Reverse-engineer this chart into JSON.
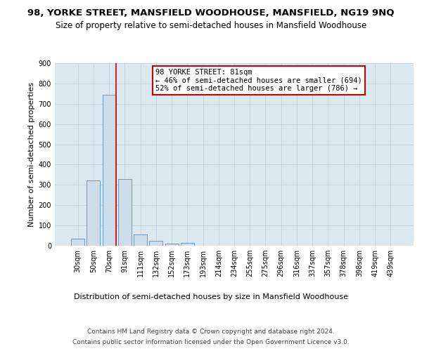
{
  "title": "98, YORKE STREET, MANSFIELD WOODHOUSE, MANSFIELD, NG19 9NQ",
  "subtitle": "Size of property relative to semi-detached houses in Mansfield Woodhouse",
  "xlabel_bottom": "Distribution of semi-detached houses by size in Mansfield Woodhouse",
  "ylabel": "Number of semi-detached properties",
  "footnote1": "Contains HM Land Registry data © Crown copyright and database right 2024.",
  "footnote2": "Contains public sector information licensed under the Open Government Licence v3.0.",
  "annotation_title": "98 YORKE STREET: 81sqm",
  "annotation_line2": "← 46% of semi-detached houses are smaller (694)",
  "annotation_line3": "52% of semi-detached houses are larger (786) →",
  "property_size": 81,
  "bar_labels": [
    "30sqm",
    "50sqm",
    "70sqm",
    "91sqm",
    "111sqm",
    "132sqm",
    "152sqm",
    "173sqm",
    "193sqm",
    "214sqm",
    "234sqm",
    "255sqm",
    "275sqm",
    "296sqm",
    "316sqm",
    "337sqm",
    "357sqm",
    "378sqm",
    "398sqm",
    "419sqm",
    "439sqm"
  ],
  "bar_values": [
    35,
    322,
    745,
    330,
    57,
    24,
    12,
    13,
    0,
    0,
    0,
    0,
    0,
    0,
    0,
    0,
    0,
    0,
    0,
    0,
    0
  ],
  "bar_color": "#ccdce8",
  "bar_edge_color": "#5b8db8",
  "marker_line_color": "#cc0000",
  "marker_bin_index": 2,
  "ylim": [
    0,
    900
  ],
  "yticks": [
    0,
    100,
    200,
    300,
    400,
    500,
    600,
    700,
    800,
    900
  ],
  "background_color": "#ffffff",
  "plot_bg_color": "#dce8f0",
  "grid_color": "#b8ccd8",
  "annotation_box_color": "#ffffff",
  "annotation_box_edge": "#cc0000",
  "title_fontsize": 9.5,
  "subtitle_fontsize": 8.5,
  "axis_label_fontsize": 8,
  "tick_fontsize": 7,
  "annotation_fontsize": 7.5,
  "footnote_fontsize": 6.5
}
